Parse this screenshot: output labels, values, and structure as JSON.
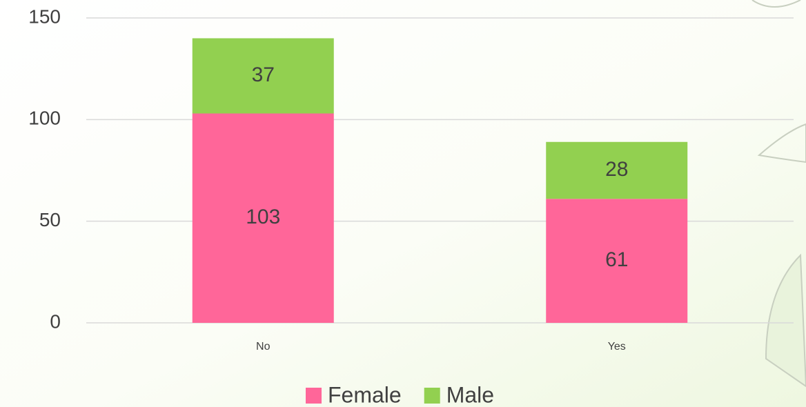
{
  "chart_data": {
    "type": "stacked_bar",
    "categories": [
      "No",
      "Yes"
    ],
    "series": [
      {
        "name": "Female",
        "color": "#ff6699",
        "values": [
          103,
          61
        ]
      },
      {
        "name": "Male",
        "color": "#92d050",
        "values": [
          37,
          28
        ]
      }
    ],
    "ylim": [
      0,
      150
    ],
    "yticks": [
      0,
      50,
      100,
      150
    ],
    "grid": true,
    "legend": "bottom"
  }
}
